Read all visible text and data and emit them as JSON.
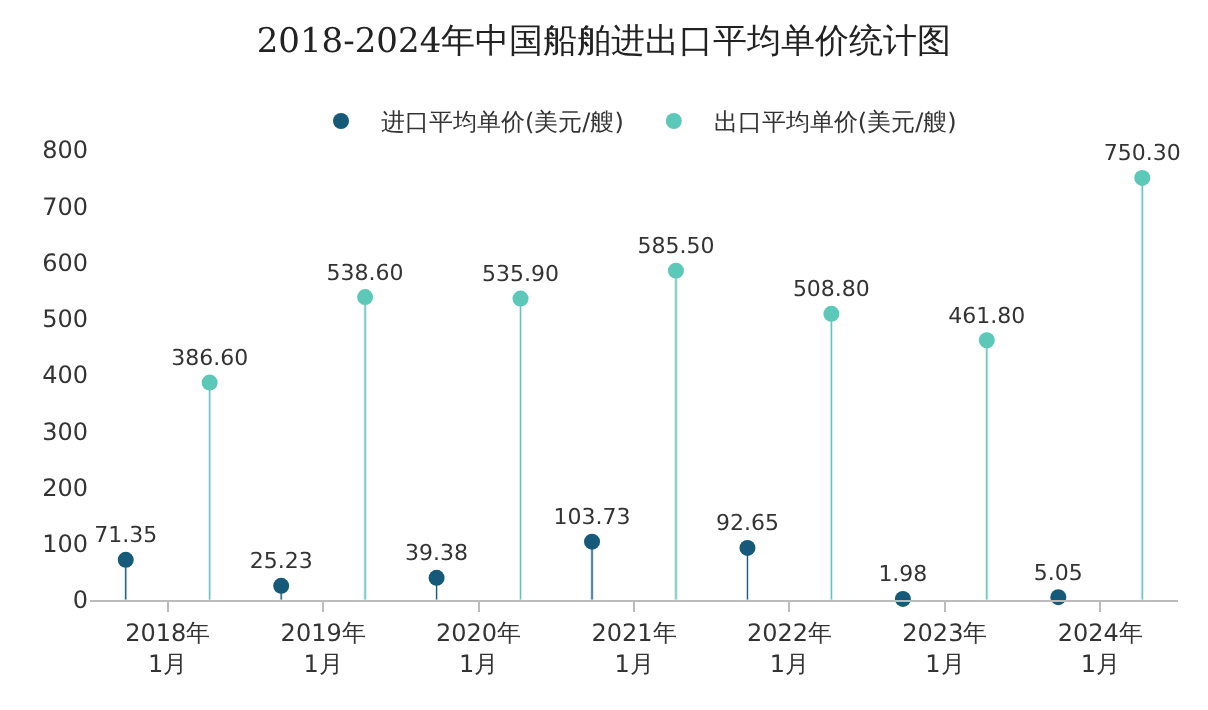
{
  "chart_data": {
    "type": "lollipop",
    "title": "2018-2024年中国船舶进出口平均单价统计图",
    "categories": [
      "2018年\n1月",
      "2019年\n1月",
      "2020年\n1月",
      "2021年\n1月",
      "2022年\n1月",
      "2023年\n1月",
      "2024年\n1月"
    ],
    "series": [
      {
        "name": "进口平均单价(美元/艘)",
        "color": "#155a78",
        "values": [
          71.35,
          25.23,
          39.38,
          103.73,
          92.65,
          1.98,
          5.05
        ]
      },
      {
        "name": "出口平均单价(美元/艘)",
        "color": "#5cc8b8",
        "values": [
          386.6,
          538.6,
          535.9,
          585.5,
          508.8,
          461.8,
          750.3
        ]
      }
    ],
    "value_labels": [
      [
        "71.35",
        "25.23",
        "39.38",
        "103.73",
        "92.65",
        "1.98",
        "5.05"
      ],
      [
        "386.60",
        "538.60",
        "535.90",
        "585.50",
        "508.80",
        "461.80",
        "750.30"
      ]
    ],
    "ylim": [
      0,
      800
    ],
    "yticks": [
      0,
      100,
      200,
      300,
      400,
      500,
      600,
      700,
      800
    ],
    "legend": "top",
    "marker": "circle"
  }
}
